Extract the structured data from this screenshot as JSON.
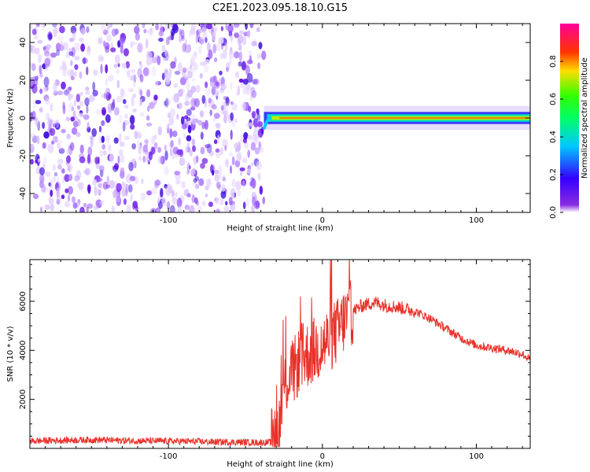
{
  "title": "C2E1.2023.095.18.10.G15",
  "colors": {
    "snr_line": "#e8312a",
    "axis": "#000000"
  },
  "chart_data": [
    {
      "type": "heatmap",
      "name": "spectrogram",
      "xlabel": "Height of straight line (km)",
      "ylabel": "Frequency (Hz)",
      "xlim": [
        -190,
        135
      ],
      "ylim": [
        -50,
        50
      ],
      "xticks": [
        -100,
        0,
        100
      ],
      "yticks": [
        -40,
        -20,
        0,
        20,
        40
      ],
      "colorbar": {
        "label": "Normalized spectral amplitude",
        "range": [
          0,
          1
        ],
        "ticks": [
          "0.0",
          "0.2",
          "0.4",
          "0.6",
          "0.8"
        ],
        "colormap": "rainbow (purple → blue → cyan → green → yellow → red → magenta)"
      },
      "features": {
        "noise_region_x": [
          -190,
          -38
        ],
        "signal_start_x": -38,
        "signal_frequency_hz": 0,
        "signal_band_halfwidth_hz": 2
      }
    },
    {
      "type": "line",
      "name": "snr",
      "xlabel": "Height of straight line (km)",
      "ylabel": "SNR (10 * v/v)",
      "xlim": [
        -190,
        135
      ],
      "ylim": [
        0,
        7700
      ],
      "xticks": [
        -100,
        0,
        100
      ],
      "yticks": [
        2000,
        4000,
        6000
      ],
      "series": [
        {
          "x": [
            -190,
            -170,
            -150,
            -130,
            -110,
            -90,
            -70,
            -50,
            -40,
            -33,
            -28,
            -25,
            -22,
            -18,
            -15,
            -10,
            -5,
            0,
            5,
            10,
            15,
            20,
            25,
            30,
            35,
            40,
            50,
            60,
            70,
            80,
            90,
            100,
            110,
            120,
            130,
            135
          ],
          "values": [
            300,
            330,
            350,
            320,
            300,
            290,
            260,
            250,
            240,
            250,
            900,
            2500,
            2900,
            3200,
            3600,
            3800,
            4000,
            4200,
            4500,
            4800,
            5300,
            5600,
            5800,
            5900,
            5950,
            5850,
            5750,
            5600,
            5300,
            4900,
            4500,
            4200,
            4100,
            4000,
            3850,
            3600
          ]
        }
      ]
    }
  ]
}
